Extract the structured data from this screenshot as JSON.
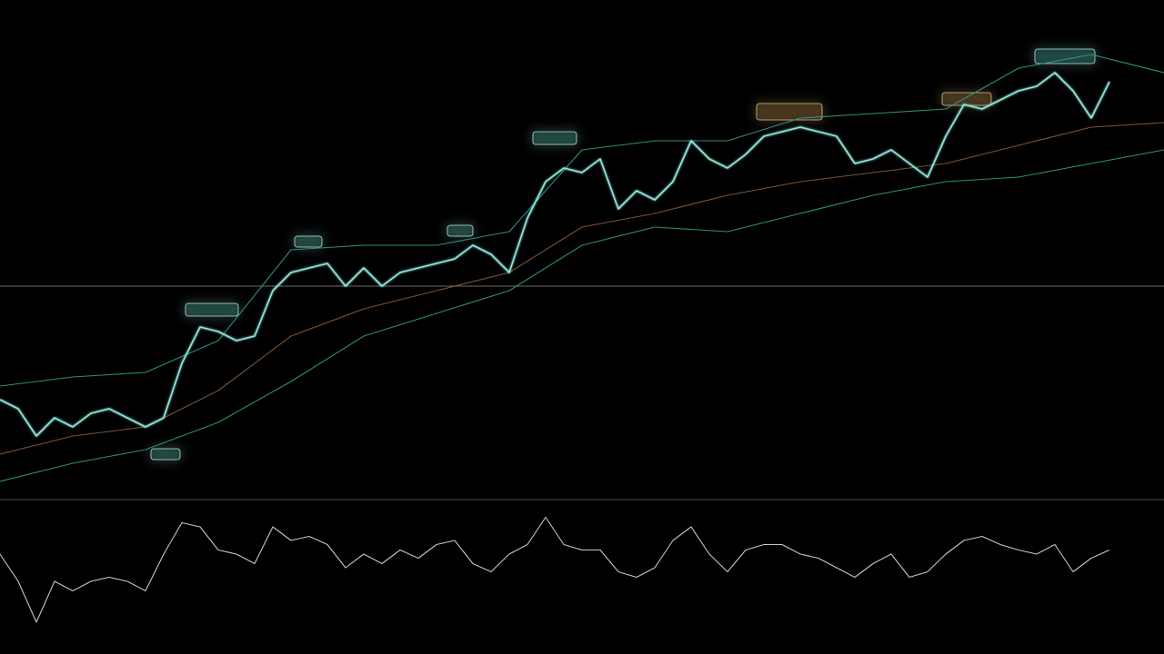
{
  "chart_data": [
    {
      "type": "line",
      "ylim": [
        0,
        110
      ],
      "reference_line": 47,
      "reference_color": "#9a9a9a",
      "series": [
        {
          "color": "#2f9c90",
          "values": [
            25,
            27,
            28,
            35,
            55,
            56,
            56,
            59,
            77,
            79,
            79,
            84,
            85,
            86,
            95,
            98,
            94
          ]
        },
        {
          "color": "#2f9c90",
          "values": [
            4,
            8,
            11,
            17,
            26,
            36,
            41,
            46,
            56,
            60,
            59,
            63,
            67,
            70,
            71,
            74,
            77
          ]
        },
        {
          "color": "#8a5a3a",
          "values": [
            10,
            14,
            16,
            24,
            36,
            42,
            46,
            50,
            60,
            63,
            67,
            70,
            72,
            74,
            78,
            82,
            83
          ]
        },
        {
          "color": "#8fe8df",
          "values": [
            22,
            20,
            14,
            18,
            16,
            19,
            20,
            18,
            16,
            18,
            30,
            38,
            37,
            35,
            36,
            46,
            50,
            51,
            52,
            47,
            51,
            47,
            50,
            51,
            52,
            53,
            56,
            54,
            50,
            62,
            70,
            73,
            72,
            75,
            64,
            68,
            66,
            70,
            79,
            75,
            73,
            76,
            80,
            81,
            82,
            81,
            80,
            74,
            75,
            77,
            74,
            71,
            80,
            87,
            86,
            88,
            90,
            91,
            94,
            90,
            84,
            92
          ]
        }
      ]
    },
    {
      "type": "line",
      "ylim": [
        0,
        100
      ],
      "series": [
        {
          "color": "#dcdcdc",
          "values": [
            60,
            40,
            10,
            40,
            33,
            40,
            43,
            40,
            33,
            60,
            83,
            80,
            63,
            60,
            53,
            80,
            70,
            73,
            67,
            50,
            60,
            53,
            63,
            57,
            67,
            70,
            53,
            47,
            60,
            67,
            87,
            67,
            63,
            63,
            47,
            43,
            50,
            70,
            80,
            60,
            47,
            63,
            67,
            67,
            60,
            57,
            50,
            43,
            53,
            60,
            43,
            47,
            60,
            70,
            73,
            67,
            63,
            60,
            67,
            47,
            57,
            63
          ]
        }
      ]
    }
  ]
}
